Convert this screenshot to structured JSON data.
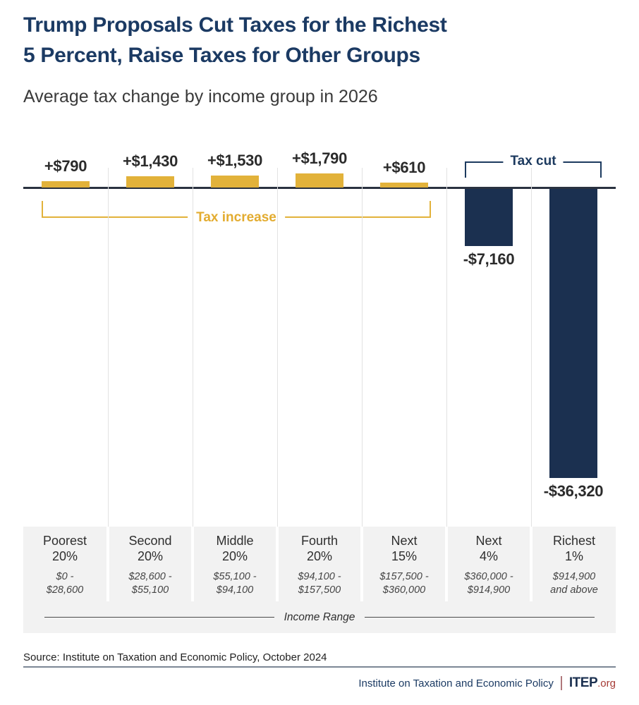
{
  "header": {
    "title_line1": "Trump Proposals Cut Taxes for the Richest",
    "title_line2": "5 Percent, Raise Taxes for Other Groups",
    "subtitle": "Average tax change by income group in 2026"
  },
  "chart_data": {
    "type": "bar",
    "title": "Trump Proposals Cut Taxes for the Richest 5 Percent, Raise Taxes for Other Groups",
    "subtitle": "Average tax change by income group in 2026",
    "xlabel": "Income Range",
    "grid": "vertical-column-separators",
    "annotations": {
      "tax_increase_label": "Tax increase",
      "tax_cut_label": "Tax cut"
    },
    "colors": {
      "tax_increase_bar": "#E2B23A",
      "tax_cut_bar": "#1B3050",
      "title_navy": "#1B3A63"
    },
    "groups": [
      {
        "category": "Poorest 20%",
        "category_lines": [
          "Poorest",
          "20%"
        ],
        "income_range": "$0 - $28,600",
        "range_lines": [
          "$0 -",
          "$28,600"
        ],
        "value": 790,
        "value_label": "+$790"
      },
      {
        "category": "Second 20%",
        "category_lines": [
          "Second",
          "20%"
        ],
        "income_range": "$28,600 - $55,100",
        "range_lines": [
          "$28,600 -",
          "$55,100"
        ],
        "value": 1430,
        "value_label": "+$1,430"
      },
      {
        "category": "Middle 20%",
        "category_lines": [
          "Middle",
          "20%"
        ],
        "income_range": "$55,100 - $94,100",
        "range_lines": [
          "$55,100 -",
          "$94,100"
        ],
        "value": 1530,
        "value_label": "+$1,530"
      },
      {
        "category": "Fourth 20%",
        "category_lines": [
          "Fourth",
          "20%"
        ],
        "income_range": "$94,100 - $157,500",
        "range_lines": [
          "$94,100 -",
          "$157,500"
        ],
        "value": 1790,
        "value_label": "+$1,790"
      },
      {
        "category": "Next 15%",
        "category_lines": [
          "Next",
          "15%"
        ],
        "income_range": "$157,500 - $360,000",
        "range_lines": [
          "$157,500 -",
          "$360,000"
        ],
        "value": 610,
        "value_label": "+$610"
      },
      {
        "category": "Next 4%",
        "category_lines": [
          "Next",
          "4%"
        ],
        "income_range": "$360,000 - $914,900",
        "range_lines": [
          "$360,000 -",
          "$914,900"
        ],
        "value": -7160,
        "value_label": "-$7,160"
      },
      {
        "category": "Richest 1%",
        "category_lines": [
          "Richest",
          "1%"
        ],
        "income_range": "$914,900 and above",
        "range_lines": [
          "$914,900",
          "and above"
        ],
        "value": -36320,
        "value_label": "-$36,320"
      }
    ]
  },
  "footer": {
    "source": "Source: Institute on Taxation and Economic Policy, October 2024",
    "org_name": "Institute on Taxation and Economic Policy",
    "logo_itep": "ITEP",
    "logo_org": ".org"
  }
}
